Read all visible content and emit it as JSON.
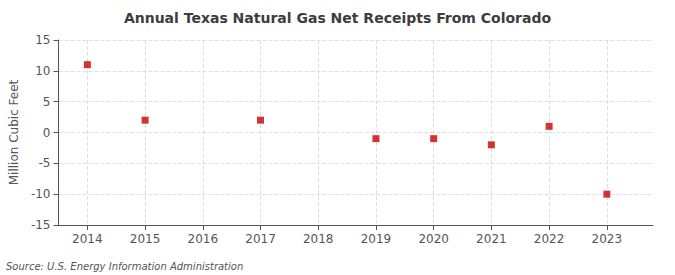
{
  "chart_data": {
    "type": "scatter",
    "title": "Annual Texas Natural Gas Net Receipts From Colorado",
    "ylabel": "Million Cubic Feet",
    "source": "Source: U.S. Energy Information Administration",
    "x": [
      2014,
      2015,
      2017,
      2019,
      2020,
      2021,
      2022,
      2023
    ],
    "values": [
      11,
      2,
      2,
      -1,
      -1,
      -2,
      1,
      -10
    ],
    "color": "#cc0000",
    "marker": "square",
    "xlim": [
      2013.5,
      2023.8
    ],
    "ylim": [
      -15,
      15
    ],
    "xticks": [
      2014,
      2015,
      2016,
      2017,
      2018,
      2019,
      2020,
      2021,
      2022,
      2023
    ],
    "yticks": [
      -15,
      -10,
      -5,
      0,
      5,
      10,
      15
    ],
    "grid": true
  }
}
